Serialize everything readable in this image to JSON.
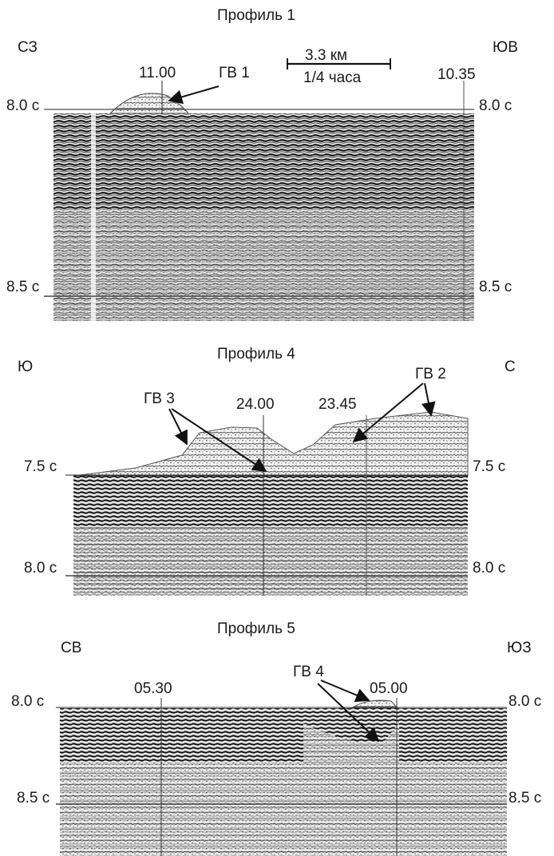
{
  "panels": [
    {
      "title": "Профиль 1",
      "dir_left": "СЗ",
      "dir_right": "ЮВ",
      "time_top_left": "8.0 с",
      "time_top_right": "8.0 с",
      "time_bottom_left": "8.5 с",
      "time_bottom_right": "8.5 с",
      "marker_a": "11.00",
      "marker_b": "10.35",
      "scale_top": "3.3 км",
      "scale_bottom": "1/4 часа",
      "annotation": "ГВ 1"
    },
    {
      "title": "Профиль 4",
      "dir_left": "Ю",
      "dir_right": "С",
      "time_top_left": "7.5 с",
      "time_top_right": "7.5 с",
      "time_bottom_left": "8.0 с",
      "time_bottom_right": "8.0 с",
      "marker_a": "24.00",
      "marker_b": "23.45",
      "annotation_a": "ГВ 3",
      "annotation_b": "ГВ 2"
    },
    {
      "title": "Профиль 5",
      "dir_left": "СВ",
      "dir_right": "ЮЗ",
      "time_top_left": "8.0 с",
      "time_top_right": "8.0 с",
      "time_bottom_left": "8.5 с",
      "time_bottom_right": "8.5 с",
      "marker_a": "05.30",
      "marker_b": "05.00",
      "annotation": "ГВ 4"
    }
  ]
}
